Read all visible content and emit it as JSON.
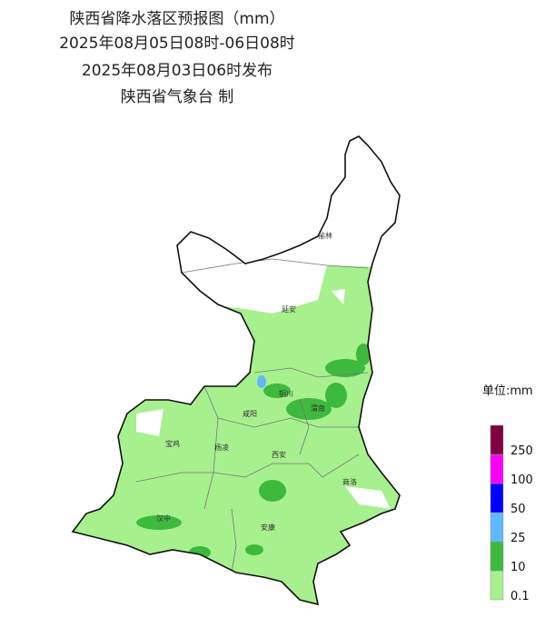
{
  "header": {
    "lines": [
      "陕西省降水落区预报图（mm）",
      "2025年08月05日08时-06日08时",
      "2025年08月03日06时发布",
      "陕西省气象台 制"
    ]
  },
  "cities": [
    "榆林",
    "延安",
    "铜川",
    "渭南",
    "咸阳",
    "宝鸡",
    "杨凌",
    "西安",
    "商洛",
    "汉中",
    "安康"
  ],
  "legend": {
    "title": "单位:mm",
    "levels": [
      {
        "label": "0.1",
        "color": "#a7f08e"
      },
      {
        "label": "10",
        "color": "#3dba3d"
      },
      {
        "label": "25",
        "color": "#61b8ff"
      },
      {
        "label": "50",
        "color": "#0000fe"
      },
      {
        "label": "100",
        "color": "#fa00fa"
      },
      {
        "label": "250",
        "color": "#810040"
      }
    ]
  }
}
